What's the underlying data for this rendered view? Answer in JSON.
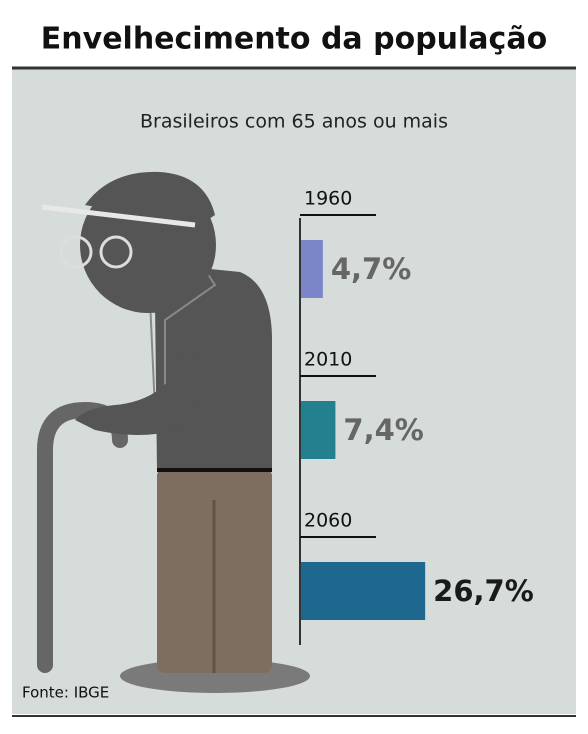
{
  "chart_data": {
    "type": "bar",
    "title": "Envelhecimento da população",
    "subtitle": "Brasileiros com 65 anos ou mais",
    "categories": [
      "1960",
      "2010",
      "2060"
    ],
    "values": [
      4.7,
      7.4,
      26.7
    ],
    "value_labels": [
      "4,7%",
      "7,4%",
      "26,7%"
    ],
    "colors": [
      "#7b86c8",
      "#23808f",
      "#1e6890"
    ],
    "source": "Fonte: IBGE"
  }
}
